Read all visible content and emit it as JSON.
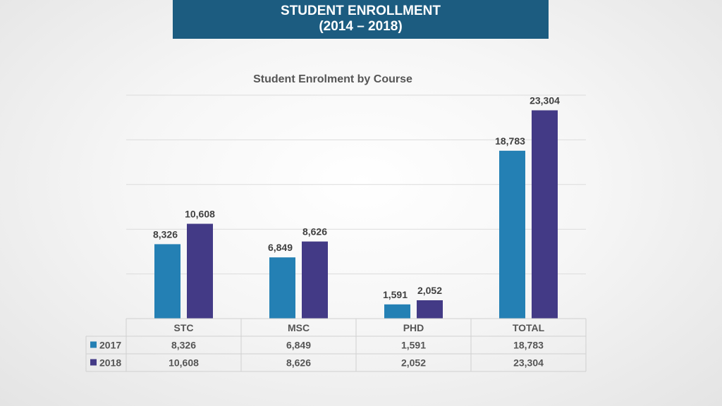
{
  "banner": {
    "line1": "STUDENT ENROLLMENT",
    "line2": "(2014 – 2018)"
  },
  "colors": {
    "series_2017": "#2480b4",
    "series_2018": "#433a86",
    "banner": "#1c5c80"
  },
  "chart_data": {
    "type": "bar",
    "title": "Student Enrolment by Course",
    "categories": [
      "STC",
      "MSC",
      "PHD",
      "TOTAL"
    ],
    "series": [
      {
        "name": "2017",
        "values": [
          8326,
          6849,
          1591,
          18783
        ],
        "labels": [
          "8,326",
          "6,849",
          "1,591",
          "18,783"
        ]
      },
      {
        "name": "2018",
        "values": [
          10608,
          8626,
          2052,
          23304
        ],
        "labels": [
          "10,608",
          "8,626",
          "2,052",
          "23,304"
        ]
      }
    ],
    "ylim": [
      0,
      25000
    ],
    "grid": true,
    "data_table": true
  }
}
